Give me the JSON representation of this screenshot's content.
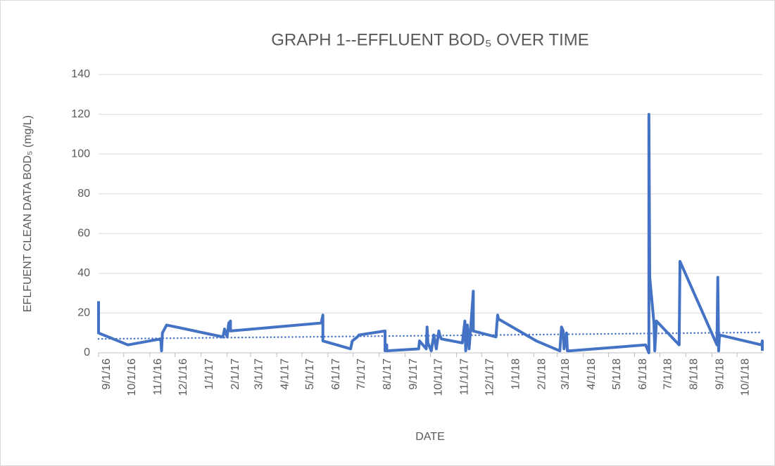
{
  "chart_data": {
    "type": "line",
    "title": "GRAPH 1--EFFLUENT BOD₅ OVER TIME",
    "x_label": "DATE",
    "y_label": "EFLFUENT CLEAN DATA BOD₅ (mg/L)",
    "xlim": [
      "2016-09-01",
      "2018-10-31"
    ],
    "xticks": [
      {
        "value": "2016-09-01",
        "label": "9/1/16"
      },
      {
        "value": "2016-10-01",
        "label": "10/1/16"
      },
      {
        "value": "2016-11-01",
        "label": "11/1/16"
      },
      {
        "value": "2016-12-01",
        "label": "12/1/16"
      },
      {
        "value": "2017-01-01",
        "label": "1/1/17"
      },
      {
        "value": "2017-02-01",
        "label": "2/1/17"
      },
      {
        "value": "2017-03-01",
        "label": "3/1/17"
      },
      {
        "value": "2017-04-01",
        "label": "4/1/17"
      },
      {
        "value": "2017-05-01",
        "label": "5/1/17"
      },
      {
        "value": "2017-06-01",
        "label": "6/1/17"
      },
      {
        "value": "2017-07-01",
        "label": "7/1/17"
      },
      {
        "value": "2017-08-01",
        "label": "8/1/17"
      },
      {
        "value": "2017-09-01",
        "label": "9/1/17"
      },
      {
        "value": "2017-10-01",
        "label": "10/1/17"
      },
      {
        "value": "2017-11-01",
        "label": "11/1/17"
      },
      {
        "value": "2017-12-01",
        "label": "12/1/17"
      },
      {
        "value": "2018-01-01",
        "label": "1/1/18"
      },
      {
        "value": "2018-02-01",
        "label": "2/1/18"
      },
      {
        "value": "2018-03-01",
        "label": "3/1/18"
      },
      {
        "value": "2018-04-01",
        "label": "4/1/18"
      },
      {
        "value": "2018-05-01",
        "label": "5/1/18"
      },
      {
        "value": "2018-06-01",
        "label": "6/1/18"
      },
      {
        "value": "2018-07-01",
        "label": "7/1/18"
      },
      {
        "value": "2018-08-01",
        "label": "8/1/18"
      },
      {
        "value": "2018-09-01",
        "label": "9/1/18"
      },
      {
        "value": "2018-10-01",
        "label": "10/1/18"
      }
    ],
    "ylim": [
      0,
      140
    ],
    "yticks": [
      0,
      20,
      40,
      60,
      80,
      100,
      120,
      140
    ],
    "grid": true,
    "series": [
      {
        "color": "#4472c4",
        "x": [
          "2016-09-01",
          "2016-09-01",
          "2016-10-06",
          "2016-11-14",
          "2016-11-15",
          "2016-11-16",
          "2016-11-21",
          "2017-01-27",
          "2017-01-29",
          "2017-02-01",
          "2017-02-03",
          "2017-02-05",
          "2017-02-05",
          "2017-05-24",
          "2017-05-26",
          "2017-05-26",
          "2017-06-28",
          "2017-06-30",
          "2017-07-06",
          "2017-07-08",
          "2017-08-08",
          "2017-08-08",
          "2017-08-10",
          "2017-08-10",
          "2017-09-17",
          "2017-09-18",
          "2017-09-26",
          "2017-09-27",
          "2017-09-28",
          "2017-10-02",
          "2017-10-05",
          "2017-10-08",
          "2017-10-11",
          "2017-10-12",
          "2017-10-14",
          "2017-11-08",
          "2017-11-11",
          "2017-11-12",
          "2017-11-14",
          "2017-11-16",
          "2017-11-18",
          "2017-11-21",
          "2017-11-21",
          "2017-12-18",
          "2017-12-19",
          "2017-12-20",
          "2017-12-21",
          "2018-02-04",
          "2018-03-04",
          "2018-03-06",
          "2018-03-08",
          "2018-03-09",
          "2018-03-12",
          "2018-03-13",
          "2018-03-16",
          "2018-06-14",
          "2018-06-18",
          "2018-06-18",
          "2018-06-19",
          "2018-06-24",
          "2018-06-25",
          "2018-06-27",
          "2018-07-24",
          "2018-07-25",
          "2018-09-07",
          "2018-09-08",
          "2018-09-09",
          "2018-09-10",
          "2018-10-30",
          "2018-10-31",
          "2018-10-31"
        ],
        "values": [
          26,
          10,
          4,
          7,
          1,
          10,
          14,
          8,
          12,
          8,
          15,
          16,
          11,
          15,
          19,
          6,
          2,
          6,
          8,
          9,
          11,
          1,
          4,
          1,
          2,
          6,
          2,
          13,
          5,
          1,
          9,
          2,
          11,
          9,
          7,
          5,
          16,
          1,
          14,
          2,
          13,
          31,
          11,
          8,
          14,
          19,
          17,
          6,
          1,
          13,
          11,
          2,
          10,
          1,
          1,
          4,
          0,
          120,
          38,
          15,
          1,
          16,
          4,
          46,
          4,
          38,
          1,
          9,
          4,
          6,
          1
        ]
      }
    ],
    "trendline": {
      "color": "#4472c4",
      "style": "dotted",
      "x": [
        "2016-09-01",
        "2018-10-31"
      ],
      "values": [
        7,
        10.3
      ]
    }
  }
}
